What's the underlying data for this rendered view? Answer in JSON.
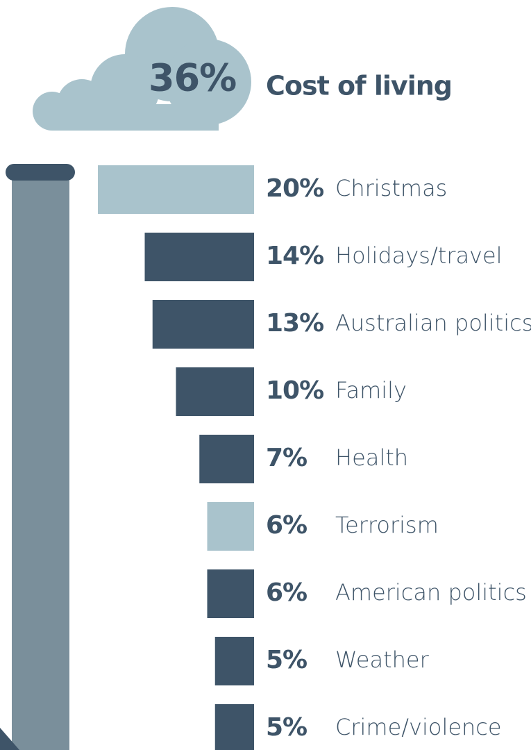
{
  "chart_data": {
    "type": "bar",
    "orientation": "horizontal",
    "highlight": {
      "value": 36,
      "value_label": "36%",
      "category": "Cost of living",
      "color": "#a9c3cc"
    },
    "categories": [
      "Christmas",
      "Holidays/travel",
      "Australian politics",
      "Family",
      "Health",
      "Terrorism",
      "American politics",
      "Weather",
      "Crime/violence"
    ],
    "values": [
      20,
      14,
      13,
      10,
      7,
      6,
      6,
      5,
      5
    ],
    "value_labels": [
      "20%",
      "14%",
      "13%",
      "10%",
      "7%",
      "6%",
      "6%",
      "5%",
      "5%"
    ],
    "colors": [
      "#a9c3cc",
      "#3e5468",
      "#3e5468",
      "#3e5468",
      "#3e5468",
      "#a9c3cc",
      "#3e5468",
      "#3e5468",
      "#3e5468"
    ]
  }
}
